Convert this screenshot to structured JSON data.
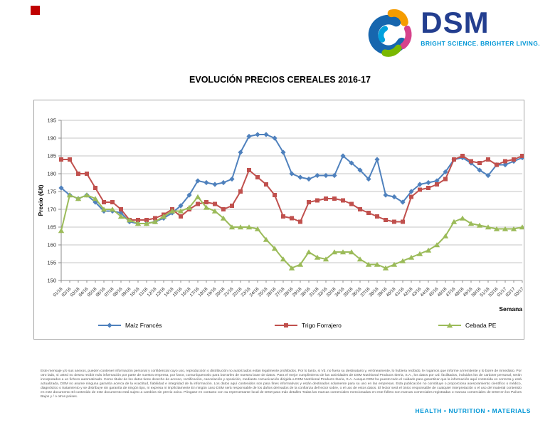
{
  "header": {
    "logo": {
      "name": "DSM",
      "tagline": "BRIGHT SCIENCE. BRIGHTER LIVING.",
      "wordmark_color": "#233E8F",
      "tagline_color": "#0096D6"
    },
    "red_square_color": "#C00000"
  },
  "chart_data": {
    "type": "line",
    "title": "EVOLUCIÓN PRECIOS CEREALES 2016-17",
    "xlabel": "Semana",
    "ylabel": "Precio (€/t)",
    "ylim": [
      150,
      195
    ],
    "ytick_step": 5,
    "grid": true,
    "legend_position": "bottom",
    "categories": [
      "01/16",
      "02/16",
      "03/16",
      "04/16",
      "05/16",
      "06/16",
      "07/16",
      "08/16",
      "09/16",
      "10/16",
      "11/16",
      "12/16",
      "13/16",
      "14/16",
      "15/16",
      "16/16",
      "17/16",
      "18/16",
      "19/16",
      "20/16",
      "21/16",
      "22/16",
      "23/16",
      "24/16",
      "25/16",
      "26/16",
      "27/16",
      "28/16",
      "29/16",
      "30/16",
      "31/16",
      "32/16",
      "33/16",
      "34/16",
      "35/16",
      "36/16",
      "37/16",
      "38/16",
      "39/16",
      "40/16",
      "41/16",
      "42/16",
      "43/16",
      "44/16",
      "45/16",
      "46/16",
      "47/16",
      "48/16",
      "49/16",
      "50/16",
      "51/16",
      "52/16",
      "01/17",
      "02/17",
      "03/17"
    ],
    "series": [
      {
        "name": "Maíz Francés",
        "color": "#4F81BD",
        "marker": "diamond",
        "values": [
          176,
          174,
          173,
          174,
          172,
          169.5,
          169.5,
          169,
          166.5,
          166,
          166,
          166.5,
          167.5,
          169,
          171,
          174,
          178,
          177.5,
          177,
          177.5,
          178.5,
          186,
          190.5,
          191,
          191,
          190,
          186,
          180,
          179,
          178.5,
          179.5,
          179.5,
          179.5,
          185,
          183,
          181,
          178.5,
          184,
          174,
          173.5,
          172,
          175,
          177,
          177.5,
          178,
          180.5,
          184,
          184.5,
          183,
          181,
          179.5,
          182.5,
          182.5,
          183.5,
          184.5
        ]
      },
      {
        "name": "Trigo Forrajero",
        "color": "#C0504D",
        "marker": "square",
        "values": [
          184,
          184,
          180,
          180,
          176,
          172,
          172,
          170,
          167,
          167,
          167,
          167.5,
          168.5,
          170,
          168,
          170,
          171.5,
          172,
          171.5,
          170,
          171,
          175,
          181,
          179,
          177,
          174,
          168,
          167.5,
          166.5,
          172,
          172.5,
          173,
          173,
          172.5,
          171.5,
          170,
          169,
          168,
          167,
          166.5,
          166.5,
          173.5,
          175.5,
          176,
          177,
          178.5,
          184,
          185,
          183.5,
          183,
          184,
          182.5,
          183.5,
          184,
          185
        ]
      },
      {
        "name": "Cebada PE",
        "color": "#9BBB59",
        "marker": "triangle",
        "values": [
          164,
          174,
          173,
          174,
          173,
          170,
          170,
          168,
          167,
          166,
          166,
          166.5,
          168,
          169.5,
          169.5,
          170.5,
          173.5,
          170.5,
          169.5,
          167.5,
          165,
          165,
          165,
          164.5,
          161.5,
          159,
          156,
          153.5,
          154.5,
          158,
          156.5,
          156,
          158,
          158,
          158,
          156,
          154.5,
          154.5,
          153.5,
          154.5,
          155.5,
          156.5,
          157.5,
          158.5,
          160,
          162.5,
          166.5,
          167.5,
          166,
          165.5,
          165,
          164.5,
          164.5,
          164.5,
          165
        ]
      }
    ]
  },
  "footer": {
    "disclaimer": "Este mensaje y/o sus anexos, pueden contener información personal y confidencial cuyo uso, reproducción o distribución no autorizados están legalmente prohibidos. Por lo tanto, si Vd. no fuera su destinatario y, erróneamente, lo hubiera recibido, le rogamos que informe al remitente y lo borre de inmediato. Por otro lado, si usted no desea recibir más información por parte de nuestra empresa, por favor, comuníquenoslo para borrarles de nuestra base de datos. Para el mejor cumplimiento de las actividades de DSM Nutritional Products Iberia, S.A., los datos por Ud. facilitados, incluidos los de carácter personal, serán incorporados a un fichero automatizado. Como titular de los datos tiene derecho de acceso, rectificación, cancelación y oposición, mediante comunicación dirigida a DSM Nutritional Products Iberia, S.A. Aunque DSM ha puesto todo el cuidado para garantizar que la información aquí contenida es correcta y está actualizada, DSM no asume ninguna garantía acerca de la exactitud, fiabilidad e integridad de la información. Los datos aquí contenidos son para fines informativos y están destinados solamente para su uso en las empresas. Esta publicación no constituye o proporciona asesoramiento científico o médico, diagnóstico o tratamiento y se distribuye sin garantía de ningún tipo, ni expresa ni implícitamente En ningún caso DSM será responsable de los daños derivados de la confianza del lector sobre, o el uso de estos datos. El lector será el único responsable de cualquier interpretación o el uso del material contenido en este documento El contenido de este documento está sujeto a cambios sin previo aviso. Póngase en contacto con su representante local de DSM para más detalles Todas las marcas comerciales mencionadas en este folleto son marcas comerciales registradas o marcas comerciales de DSM en los Países Bajos y / o otros países.",
    "brand_line": "HEALTH • NUTRITION • MATERIALS",
    "brand_color": "#0096D6"
  }
}
